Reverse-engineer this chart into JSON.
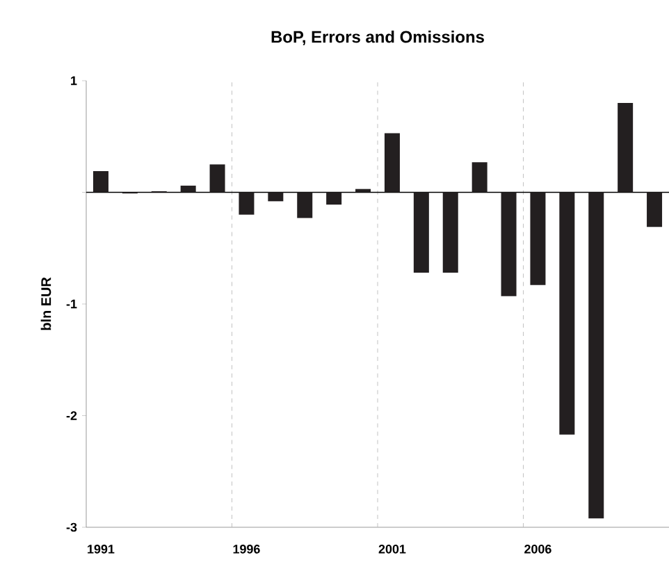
{
  "chart_data": {
    "type": "bar",
    "title": "BoP, Errors and Omissions",
    "ylabel": "bln EUR",
    "categories": [
      "1991",
      null,
      null,
      null,
      null,
      "1996",
      null,
      null,
      null,
      null,
      "2001",
      null,
      null,
      null,
      null,
      "2006",
      null,
      null,
      null,
      null
    ],
    "values": [
      0.19,
      -0.01,
      0.01,
      0.06,
      0.25,
      -0.2,
      -0.08,
      -0.23,
      -0.11,
      0.03,
      0.53,
      -0.72,
      -0.72,
      0.27,
      -0.93,
      -0.83,
      -2.17,
      -2.92,
      0.8,
      -0.31
    ],
    "color": "#231f20",
    "ylim": [
      -3,
      1
    ],
    "yticks": [
      1,
      {
        "value": 0,
        "label": null
      },
      -1,
      -2,
      -3
    ],
    "grid": "x"
  }
}
